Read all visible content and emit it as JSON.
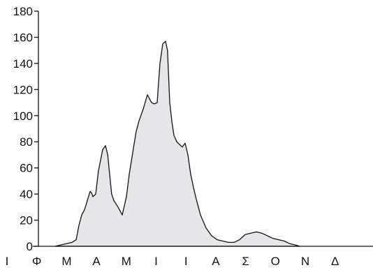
{
  "chart_data": {
    "type": "area",
    "title": "",
    "xlabel": "",
    "ylabel": "",
    "ylim": [
      0,
      180
    ],
    "yticks": [
      0,
      20,
      40,
      60,
      80,
      100,
      120,
      140,
      160,
      180
    ],
    "months": [
      "Ι",
      "Φ",
      "Μ",
      "Α",
      "Μ",
      "Ι",
      "Ι",
      "Α",
      "Σ",
      "Ο",
      "Ν",
      "Δ"
    ],
    "xlim": [
      0,
      12
    ],
    "grid": false,
    "legend": "none",
    "fill_color": "#e6e6e8",
    "line_color": "#111111",
    "series": [
      {
        "x": [
          0.6,
          0.8,
          1.0,
          1.2,
          1.35,
          1.45,
          1.55,
          1.65,
          1.75,
          1.85,
          1.9,
          1.95,
          2.05,
          2.15,
          2.3,
          2.4,
          2.48,
          2.55,
          2.62,
          2.7,
          2.85,
          3.0,
          3.15,
          3.25,
          3.4,
          3.5,
          3.6,
          3.75,
          3.9,
          4.05,
          4.15,
          4.25,
          4.35,
          4.45,
          4.55,
          4.62,
          4.7,
          4.78,
          4.85,
          4.95,
          5.05,
          5.15,
          5.25,
          5.35,
          5.45,
          5.55,
          5.65,
          5.8,
          6.0,
          6.2,
          6.4,
          6.6,
          6.8,
          7.0,
          7.2,
          7.4,
          7.6,
          7.8,
          8.0,
          8.2,
          8.4,
          8.6,
          8.8,
          9.0,
          9.2,
          9.35
        ],
        "y": [
          0,
          1,
          2,
          3,
          5,
          16,
          24,
          28,
          35,
          42,
          41,
          38,
          40,
          58,
          74,
          77,
          70,
          55,
          40,
          35,
          30,
          24,
          38,
          55,
          75,
          88,
          96,
          105,
          116,
          110,
          109,
          110,
          140,
          155,
          157,
          150,
          110,
          95,
          85,
          80,
          78,
          76,
          79,
          70,
          55,
          45,
          36,
          24,
          14,
          8,
          5,
          4,
          3,
          3,
          5,
          9,
          10,
          11,
          10,
          8,
          6,
          5,
          4,
          2,
          1,
          0
        ]
      }
    ]
  }
}
